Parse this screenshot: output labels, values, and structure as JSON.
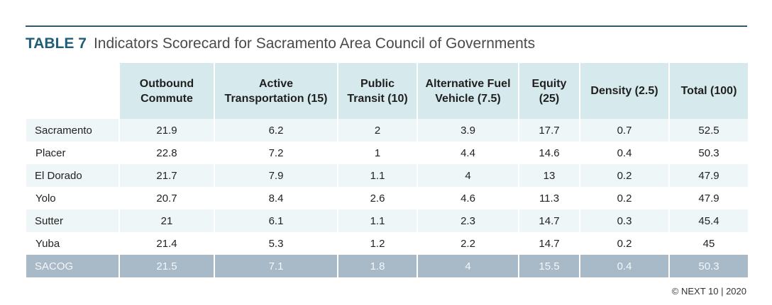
{
  "title": {
    "label": "TABLE 7",
    "text": "Indicators Scorecard for Sacramento Area Council of Governments"
  },
  "columns": [
    "",
    "Outbound Commute",
    "Active Transportation (15)",
    "Public Transit (10)",
    "Alternative Fuel Vehicle (7.5)",
    "Equity (25)",
    "Density (2.5)",
    "Total (100)"
  ],
  "rows": [
    [
      "Sacramento",
      "21.9",
      "6.2",
      "2",
      "3.9",
      "17.7",
      "0.7",
      "52.5"
    ],
    [
      "Placer",
      "22.8",
      "7.2",
      "1",
      "4.4",
      "14.6",
      "0.4",
      "50.3"
    ],
    [
      "El Dorado",
      "21.7",
      "7.9",
      "1.1",
      "4",
      "13",
      "0.2",
      "47.9"
    ],
    [
      "Yolo",
      "20.7",
      "8.4",
      "2.6",
      "4.6",
      "11.3",
      "0.2",
      "47.9"
    ],
    [
      "Sutter",
      "21",
      "6.1",
      "1.1",
      "2.3",
      "14.7",
      "0.3",
      "45.4"
    ],
    [
      "Yuba",
      "21.4",
      "5.3",
      "1.2",
      "2.2",
      "14.7",
      "0.2",
      "45"
    ]
  ],
  "summary": [
    "SACOG",
    "21.5",
    "7.1",
    "1.8",
    "4",
    "15.5",
    "0.4",
    "50.3"
  ],
  "credit": "© NEXT 10 | 2020",
  "colors": {
    "title_label": "#1f5d78",
    "header_bg": "#d6eaee",
    "row_shade": "#eef6f7",
    "summary_bg": "#a8b9c7",
    "rule": "#2e5a6e"
  }
}
